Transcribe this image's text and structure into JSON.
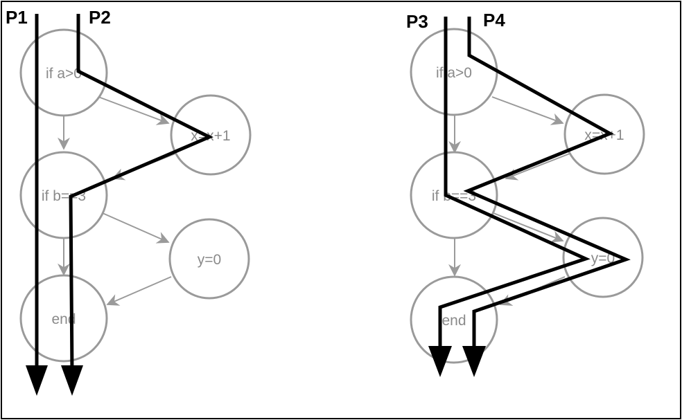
{
  "diagrams": [
    {
      "nodes": [
        {
          "id": "n1",
          "label": "if a>0"
        },
        {
          "id": "n2",
          "label": "x=x+1"
        },
        {
          "id": "n3",
          "label": "if b==3"
        },
        {
          "id": "n4",
          "label": "y=0"
        },
        {
          "id": "n5",
          "label": "end"
        }
      ],
      "edges": [
        {
          "from": "n1",
          "to": "n2"
        },
        {
          "from": "n1",
          "to": "n3"
        },
        {
          "from": "n2",
          "to": "n3"
        },
        {
          "from": "n3",
          "to": "n4"
        },
        {
          "from": "n3",
          "to": "n5"
        },
        {
          "from": "n4",
          "to": "n5"
        }
      ],
      "paths": [
        {
          "label": "P1"
        },
        {
          "label": "P2"
        }
      ]
    },
    {
      "nodes": [
        {
          "id": "m1",
          "label": "if a>0"
        },
        {
          "id": "m2",
          "label": "x=x+1"
        },
        {
          "id": "m3",
          "label": "if b==3"
        },
        {
          "id": "m4",
          "label": "y=0"
        },
        {
          "id": "m5",
          "label": "end"
        }
      ],
      "edges": [
        {
          "from": "m1",
          "to": "m2"
        },
        {
          "from": "m1",
          "to": "m3"
        },
        {
          "from": "m2",
          "to": "m3"
        },
        {
          "from": "m3",
          "to": "m4"
        },
        {
          "from": "m3",
          "to": "m5"
        },
        {
          "from": "m4",
          "to": "m5"
        }
      ],
      "paths": [
        {
          "label": "P3"
        },
        {
          "label": "P4"
        }
      ]
    }
  ],
  "colors": {
    "node_stroke": "#9a9a9a",
    "node_text": "#8a8a8a",
    "path": "#000000"
  }
}
